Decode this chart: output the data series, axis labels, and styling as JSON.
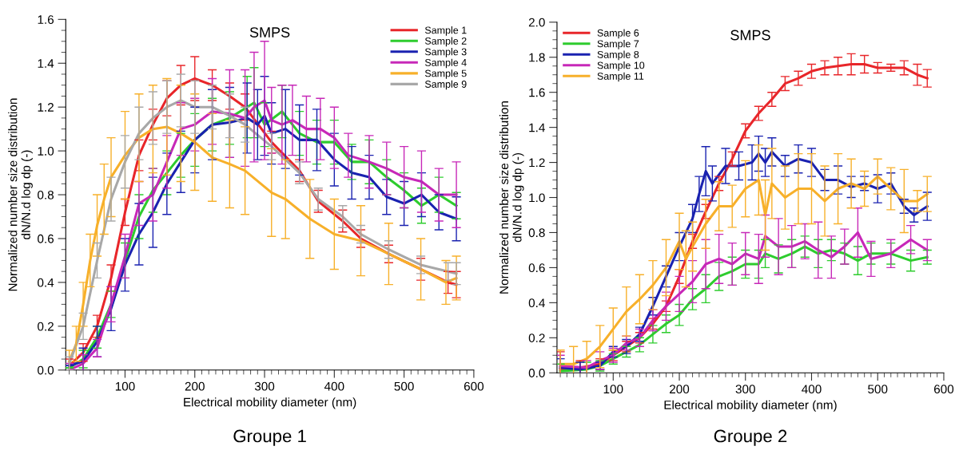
{
  "chart_data": [
    {
      "type": "line",
      "title": "SMPS",
      "xlabel": "Electrical mobility diameter (nm)",
      "ylabel": "Normalized number size distribution\ndN/N.d log dp (-)",
      "xlim": [
        15,
        600
      ],
      "xticks": [
        100,
        200,
        300,
        400,
        500,
        600
      ],
      "ylim": [
        0.0,
        1.6
      ],
      "yticks": [
        {
          "value": 0,
          "label": "0.0"
        },
        0.2,
        0.4,
        0.6,
        0.8,
        {
          "value": 1,
          "label": "1.0"
        },
        1.2,
        1.4,
        1.6
      ],
      "legend": "top right",
      "grid": false,
      "annotations": [
        "Groupe 1"
      ],
      "series": [
        {
          "name": "Sample 1",
          "color": "#e8262a",
          "x": [
            20,
            40,
            60,
            80,
            100,
            120,
            140,
            160,
            180,
            200,
            225,
            250,
            272,
            310,
            350,
            377,
            412,
            438,
            478,
            524,
            563,
            575
          ],
          "values": [
            0.02,
            0.08,
            0.2,
            0.42,
            0.72,
            0.98,
            1.12,
            1.24,
            1.3,
            1.33,
            1.3,
            1.25,
            1.2,
            1.04,
            0.91,
            0.77,
            0.68,
            0.6,
            0.53,
            0.46,
            0.4,
            0.39
          ],
          "errors": [
            0.03,
            0.04,
            0.05,
            0.06,
            0.06,
            0.07,
            0.07,
            0.08,
            0.09,
            0.1,
            0.07,
            0.06,
            0.06,
            0.05,
            0.05,
            0.05,
            0.05,
            0.04,
            0.04,
            0.05,
            0.05,
            0.06
          ]
        },
        {
          "name": "Sample 2",
          "color": "#2ecc2e",
          "x": [
            20,
            40,
            60,
            80,
            100,
            120,
            140,
            160,
            180,
            200,
            225,
            250,
            275,
            285,
            300,
            325,
            350,
            375,
            400,
            425,
            450,
            475,
            500,
            525,
            550,
            575
          ],
          "values": [
            0.01,
            0.05,
            0.15,
            0.3,
            0.5,
            0.7,
            0.82,
            0.9,
            0.98,
            1.05,
            1.12,
            1.15,
            1.2,
            1.22,
            1.12,
            1.18,
            1.08,
            1.04,
            1.04,
            0.95,
            0.95,
            0.88,
            0.82,
            0.75,
            0.8,
            0.75
          ],
          "errors": [
            null,
            0.04,
            0.05,
            0.06,
            0.08,
            0.1,
            0.1,
            0.1,
            0.1,
            0.12,
            0.12,
            0.12,
            0.14,
            0.16,
            0.1,
            0.12,
            0.1,
            0.1,
            0.1,
            0.08,
            0.1,
            0.08,
            0.08,
            0.08,
            0.08,
            0.06
          ]
        },
        {
          "name": "Sample 3",
          "color": "#1a22b0",
          "x": [
            20,
            40,
            60,
            80,
            100,
            120,
            140,
            160,
            180,
            200,
            225,
            250,
            275,
            290,
            300,
            310,
            330,
            350,
            375,
            400,
            425,
            450,
            475,
            500,
            525,
            550,
            575
          ],
          "values": [
            0.02,
            0.04,
            0.13,
            0.28,
            0.48,
            0.62,
            0.72,
            0.85,
            0.95,
            1.05,
            1.12,
            1.13,
            1.15,
            1.12,
            1.16,
            1.08,
            1.1,
            1.05,
            1.05,
            0.96,
            0.9,
            0.88,
            0.79,
            0.76,
            0.8,
            0.72,
            0.69
          ],
          "errors": [
            null,
            0.06,
            0.07,
            0.1,
            0.12,
            0.14,
            0.16,
            0.14,
            0.14,
            0.15,
            0.16,
            0.16,
            0.16,
            0.16,
            0.18,
            0.14,
            0.18,
            0.16,
            0.14,
            0.12,
            0.12,
            0.1,
            0.08,
            0.1,
            0.1,
            0.08,
            0.1
          ]
        },
        {
          "name": "Sample 4",
          "color": "#c728b8",
          "x": [
            20,
            40,
            60,
            80,
            100,
            120,
            140,
            160,
            180,
            200,
            225,
            250,
            272,
            285,
            300,
            310,
            325,
            340,
            360,
            380,
            400,
            420,
            450,
            475,
            500,
            525,
            550,
            575
          ],
          "values": [
            0.0,
            0.03,
            0.1,
            0.3,
            0.52,
            0.76,
            0.8,
            0.95,
            1.1,
            1.12,
            1.18,
            1.17,
            1.15,
            1.2,
            1.23,
            1.14,
            1.12,
            1.14,
            1.1,
            1.1,
            1.06,
            0.98,
            0.95,
            0.92,
            0.88,
            0.86,
            0.8,
            0.8
          ],
          "errors": [
            0.03,
            0.04,
            0.04,
            0.08,
            0.1,
            0.1,
            0.12,
            0.12,
            0.12,
            0.12,
            0.15,
            0.2,
            0.22,
            0.25,
            0.27,
            0.15,
            0.18,
            0.16,
            0.15,
            0.14,
            0.14,
            0.1,
            0.12,
            0.12,
            0.14,
            0.14,
            0.12,
            0.15
          ]
        },
        {
          "name": "Sample 5",
          "color": "#f7b02a",
          "x": [
            20,
            30,
            40,
            50,
            60,
            70,
            80,
            100,
            120,
            140,
            160,
            180,
            200,
            225,
            250,
            272,
            310,
            330,
            365,
            400,
            438,
            478,
            524,
            560,
            575
          ],
          "values": [
            0.04,
            0.12,
            0.3,
            0.5,
            0.66,
            0.78,
            0.88,
            0.98,
            1.06,
            1.1,
            1.11,
            1.08,
            1.04,
            0.97,
            0.94,
            0.91,
            0.81,
            0.78,
            0.69,
            0.62,
            0.59,
            0.53,
            0.46,
            0.4,
            0.42
          ],
          "errors": [
            0.05,
            0.08,
            0.1,
            0.12,
            0.14,
            0.16,
            0.18,
            0.2,
            0.2,
            0.2,
            0.22,
            0.22,
            0.22,
            0.2,
            0.2,
            0.2,
            0.2,
            0.18,
            0.18,
            0.16,
            0.16,
            0.14,
            0.14,
            0.1,
            0.1
          ]
        },
        {
          "name": "Sample 9",
          "color": "#a8a8a8",
          "x": [
            20,
            40,
            60,
            80,
            100,
            120,
            140,
            160,
            180,
            200,
            225,
            250,
            272,
            310,
            350,
            377,
            412,
            438,
            478,
            524,
            563,
            575
          ],
          "values": [
            0.03,
            0.2,
            0.5,
            0.78,
            0.95,
            1.08,
            1.15,
            1.2,
            1.23,
            1.2,
            1.2,
            1.16,
            1.12,
            1.02,
            0.9,
            0.78,
            0.7,
            0.62,
            0.55,
            0.48,
            0.45,
            0.44
          ],
          "errors": [
            0.03,
            0.06,
            0.08,
            0.1,
            0.12,
            0.12,
            0.12,
            0.12,
            0.12,
            0.12,
            0.1,
            0.1,
            0.08,
            0.06,
            0.05,
            0.05,
            0.05,
            0.04,
            0.04,
            0.04,
            0.04,
            0.05
          ]
        }
      ]
    },
    {
      "type": "line",
      "title": "SMPS",
      "xlabel": "Electrical mobility diameter (nm)",
      "ylabel": "Normalized number size distribution\ndN/N.d log dp (-)",
      "xlim": [
        15,
        600
      ],
      "xticks": [
        100,
        200,
        300,
        400,
        500,
        600
      ],
      "ylim": [
        0.0,
        2.0
      ],
      "yticks": [
        {
          "value": 0,
          "label": "0.0"
        },
        0.2,
        0.4,
        0.6,
        0.8,
        {
          "value": 1,
          "label": "1.0"
        },
        1.2,
        1.4,
        1.6,
        1.8,
        {
          "value": 2,
          "label": "2.0"
        }
      ],
      "legend": "top left",
      "grid": false,
      "annotations": [
        "Groupe 2"
      ],
      "series": [
        {
          "name": "Sample 6",
          "color": "#e8262a",
          "x": [
            20,
            50,
            80,
            100,
            120,
            140,
            160,
            180,
            200,
            220,
            240,
            260,
            280,
            300,
            320,
            340,
            360,
            380,
            400,
            420,
            440,
            460,
            480,
            500,
            520,
            540,
            560,
            575
          ],
          "values": [
            0.02,
            0.03,
            0.05,
            0.1,
            0.15,
            0.2,
            0.28,
            0.38,
            0.55,
            0.75,
            0.92,
            1.08,
            1.22,
            1.38,
            1.48,
            1.56,
            1.65,
            1.68,
            1.72,
            1.74,
            1.75,
            1.76,
            1.76,
            1.74,
            1.74,
            1.74,
            1.7,
            1.68
          ],
          "errors": [
            0.1,
            0.04,
            0.03,
            0.03,
            0.03,
            0.03,
            0.03,
            0.03,
            0.04,
            0.04,
            0.04,
            0.04,
            0.04,
            0.04,
            0.04,
            0.04,
            0.04,
            0.04,
            0.04,
            0.04,
            0.05,
            0.06,
            0.05,
            0.03,
            0.02,
            0.04,
            0.06,
            0.05
          ]
        },
        {
          "name": "Sample 7",
          "color": "#2ecc2e",
          "x": [
            20,
            60,
            80,
            100,
            120,
            140,
            160,
            180,
            200,
            220,
            240,
            260,
            280,
            300,
            320,
            330,
            350,
            370,
            390,
            410,
            430,
            450,
            470,
            490,
            520,
            550,
            575
          ],
          "values": [
            0.01,
            0.02,
            0.04,
            0.08,
            0.12,
            0.16,
            0.22,
            0.28,
            0.33,
            0.42,
            0.48,
            0.55,
            0.58,
            0.62,
            0.62,
            0.68,
            0.65,
            0.68,
            0.72,
            0.68,
            0.7,
            0.68,
            0.64,
            0.68,
            0.68,
            0.64,
            0.66
          ],
          "errors": [
            0.04,
            0.04,
            0.03,
            0.03,
            0.03,
            0.04,
            0.05,
            0.05,
            0.06,
            0.06,
            0.08,
            0.08,
            0.08,
            0.08,
            0.08,
            0.08,
            0.08,
            0.08,
            0.06,
            0.08,
            0.06,
            0.06,
            0.08,
            0.06,
            0.06,
            0.06,
            0.04
          ]
        },
        {
          "name": "Sample 8",
          "color": "#1a22b0",
          "x": [
            20,
            50,
            80,
            100,
            120,
            140,
            160,
            180,
            200,
            220,
            230,
            240,
            250,
            270,
            290,
            310,
            320,
            330,
            340,
            360,
            380,
            400,
            420,
            440,
            460,
            480,
            500,
            520,
            540,
            555,
            575
          ],
          "values": [
            0.03,
            0.02,
            0.04,
            0.12,
            0.15,
            0.22,
            0.38,
            0.55,
            0.72,
            0.88,
            1.02,
            1.15,
            1.08,
            1.18,
            1.18,
            1.2,
            1.25,
            1.2,
            1.26,
            1.18,
            1.22,
            1.2,
            1.1,
            1.1,
            1.06,
            1.08,
            1.05,
            1.08,
            0.95,
            0.9,
            0.95
          ],
          "errors": [
            0.05,
            0.04,
            0.02,
            0.03,
            0.04,
            0.04,
            0.05,
            0.06,
            0.08,
            0.08,
            0.1,
            0.14,
            0.1,
            0.1,
            0.08,
            0.1,
            0.1,
            0.08,
            0.08,
            0.06,
            0.08,
            0.08,
            0.06,
            0.08,
            0.06,
            0.04,
            0.08,
            0.06,
            0.04,
            0.04,
            0.08
          ]
        },
        {
          "name": "Sample 10",
          "color": "#c728b8",
          "x": [
            20,
            60,
            80,
            100,
            120,
            140,
            160,
            180,
            200,
            220,
            240,
            260,
            280,
            300,
            320,
            330,
            350,
            370,
            390,
            410,
            430,
            450,
            470,
            490,
            520,
            550,
            575
          ],
          "values": [
            0.04,
            0.03,
            0.07,
            0.1,
            0.17,
            0.2,
            0.3,
            0.38,
            0.45,
            0.52,
            0.62,
            0.65,
            0.62,
            0.68,
            0.65,
            0.78,
            0.72,
            0.72,
            0.75,
            0.7,
            0.66,
            0.72,
            0.8,
            0.65,
            0.68,
            0.76,
            0.7
          ],
          "errors": [
            0.06,
            0.04,
            0.05,
            0.04,
            0.04,
            0.05,
            0.06,
            0.08,
            0.1,
            0.12,
            0.14,
            0.14,
            0.12,
            0.12,
            0.14,
            0.12,
            0.16,
            0.12,
            0.1,
            0.16,
            0.12,
            0.1,
            0.14,
            0.1,
            0.08,
            0.08,
            0.06
          ]
        },
        {
          "name": "Sample 11",
          "color": "#f7b02a",
          "x": [
            20,
            40,
            60,
            80,
            100,
            120,
            140,
            160,
            180,
            200,
            210,
            220,
            240,
            260,
            280,
            300,
            320,
            330,
            340,
            360,
            380,
            400,
            420,
            440,
            460,
            480,
            500,
            520,
            540,
            560,
            575
          ],
          "values": [
            0.05,
            0.05,
            0.08,
            0.15,
            0.25,
            0.35,
            0.42,
            0.5,
            0.6,
            0.75,
            0.65,
            0.72,
            0.85,
            0.95,
            0.95,
            1.05,
            1.1,
            0.9,
            1.08,
            1.0,
            1.05,
            1.05,
            0.98,
            1.05,
            1.08,
            1.05,
            1.12,
            1.05,
            0.98,
            0.98,
            1.02
          ],
          "errors": [
            0.08,
            0.1,
            0.1,
            0.12,
            0.12,
            0.14,
            0.14,
            0.14,
            0.16,
            0.16,
            0.16,
            0.14,
            0.14,
            0.14,
            0.12,
            0.16,
            0.2,
            0.2,
            0.2,
            0.18,
            0.2,
            0.2,
            0.2,
            0.2,
            0.14,
            0.1,
            0.1,
            0.12,
            0.18,
            0.06,
            0.1
          ]
        }
      ]
    }
  ]
}
